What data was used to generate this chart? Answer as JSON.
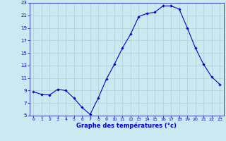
{
  "hours": [
    0,
    1,
    2,
    3,
    4,
    5,
    6,
    7,
    8,
    9,
    10,
    11,
    12,
    13,
    14,
    15,
    16,
    17,
    18,
    19,
    20,
    21,
    22,
    23
  ],
  "temperatures": [
    8.8,
    8.4,
    8.3,
    9.2,
    9.0,
    7.8,
    6.3,
    5.2,
    7.8,
    10.8,
    13.2,
    15.8,
    18.0,
    20.8,
    21.3,
    21.5,
    22.5,
    22.5,
    22.0,
    19.0,
    15.8,
    13.2,
    11.2,
    10.0
  ],
  "line_color": "#0000cc",
  "marker": "D",
  "marker_size": 1.8,
  "bg_color": "#cce8f0",
  "grid_color": "#b0cfd8",
  "xlabel": "Graphe des températures (°c)",
  "xlabel_color": "#0000cc",
  "tick_color": "#0000cc",
  "ylim": [
    5,
    23
  ],
  "xlim": [
    -0.5,
    23.5
  ],
  "yticks": [
    5,
    7,
    9,
    11,
    13,
    15,
    17,
    19,
    21,
    23
  ],
  "xticks": [
    0,
    1,
    2,
    3,
    4,
    5,
    6,
    7,
    8,
    9,
    10,
    11,
    12,
    13,
    14,
    15,
    16,
    17,
    18,
    19,
    20,
    21,
    22,
    23
  ]
}
